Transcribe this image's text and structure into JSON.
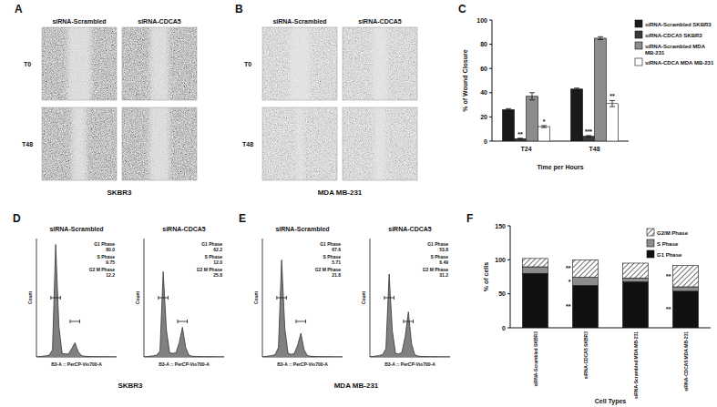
{
  "image_panels": [
    {
      "annotations": [
        "A"
      ],
      "columns": [
        "siRNA-Scrambled",
        "siRNA-CDCA5"
      ],
      "rows": [
        "T0",
        "T48"
      ],
      "caption": "SKBR3"
    },
    {
      "annotations": [
        "B"
      ],
      "columns": [
        "siRNA-Scrambled",
        "siRNA-CDCA5"
      ],
      "rows": [
        "T0",
        "T48"
      ],
      "caption": "MDA MB-231"
    }
  ],
  "chart_data": [
    {
      "type": "bar",
      "annotations": [
        "C"
      ],
      "categories": [
        "T24",
        "T48"
      ],
      "xlabel": "Time per Hours",
      "ylabel": "% of Wound Closure",
      "ylim": [
        0,
        100
      ],
      "yticks": [
        0,
        20,
        40,
        60,
        80,
        100
      ],
      "legend": "right",
      "series": [
        {
          "name": "siRNA-Scrambled SKBR3",
          "color": "#1a1a1a",
          "values": [
            26,
            43
          ],
          "errors": [
            0.8,
            0.8
          ]
        },
        {
          "name": "siRNA-CDCA5 SKBR3",
          "color": "#3a3a3a",
          "values": [
            2,
            4
          ],
          "errors": [
            0.4,
            0.6
          ],
          "significance": [
            "**",
            "***"
          ]
        },
        {
          "name": "siRNA-Scrambled MDA MB-231",
          "color": "#8c8c8c",
          "values": [
            37,
            85
          ],
          "errors": [
            3,
            1.2
          ]
        },
        {
          "name": "siRNA-CDCA MDA MB-231",
          "color": "#ffffff",
          "values": [
            12,
            31
          ],
          "errors": [
            0.8,
            2.5
          ],
          "significance": [
            "*",
            "**"
          ]
        }
      ]
    },
    {
      "type": "area",
      "annotations": [
        "D"
      ],
      "caption": "SKBR3",
      "xlabel": "B3-A :: PerCP-Vio700-A",
      "ylabel": "Count",
      "xlim": [
        0,
        250
      ],
      "ylim": [
        0,
        1000
      ],
      "tick_labels": false,
      "x": [
        0,
        10,
        20,
        30,
        40,
        50,
        60,
        70,
        80,
        90,
        100,
        110,
        120,
        130,
        140,
        150,
        160,
        170,
        180,
        190,
        200,
        210,
        220,
        230,
        240,
        250
      ],
      "series": [
        {
          "name": "siRNA-Scrambled",
          "color": "#808080",
          "values": [
            0,
            3,
            6,
            10,
            15,
            60,
            950,
            260,
            30,
            25,
            25,
            70,
            120,
            45,
            12,
            6,
            4,
            3,
            2,
            2,
            1,
            1,
            1,
            0,
            0,
            0
          ],
          "phases": [
            {
              "name": "G1 Phase",
              "value": 80,
              "label": "80.0",
              "gate": [
                45,
                75
              ]
            },
            {
              "name": "S Phase",
              "value": 9.75
            },
            {
              "name": "G2 M Phase",
              "value": 12.2,
              "gate": [
                105,
                135
              ]
            }
          ]
        },
        {
          "name": "siRNA-CDCA5",
          "color": "#808080",
          "values": [
            0,
            3,
            6,
            10,
            15,
            50,
            720,
            230,
            35,
            30,
            35,
            120,
            250,
            80,
            15,
            6,
            4,
            3,
            2,
            2,
            1,
            1,
            1,
            0,
            0,
            0
          ],
          "phases": [
            {
              "name": "G1 Phase",
              "value": 62.2,
              "gate": [
                45,
                75
              ]
            },
            {
              "name": "S Phase",
              "value": 12,
              "label": "12.0"
            },
            {
              "name": "G2 M Phase",
              "value": 25.8,
              "gate": [
                105,
                135
              ]
            }
          ]
        }
      ]
    },
    {
      "type": "area",
      "annotations": [
        "E"
      ],
      "caption": "MDA MB-231",
      "xlabel": "B3-A :: PerCP-Vio700-A",
      "ylabel": "Count",
      "xlim": [
        0,
        250
      ],
      "ylim": [
        0,
        1000
      ],
      "tick_labels": false,
      "x": [
        0,
        10,
        20,
        30,
        40,
        50,
        60,
        70,
        80,
        90,
        100,
        110,
        120,
        130,
        140,
        150,
        160,
        170,
        180,
        190,
        200,
        210,
        220,
        230,
        240,
        250
      ],
      "series": [
        {
          "name": "siRNA-Scrambled",
          "color": "#808080",
          "values": [
            0,
            4,
            8,
            12,
            20,
            80,
            820,
            240,
            30,
            22,
            30,
            100,
            200,
            60,
            12,
            6,
            4,
            3,
            2,
            2,
            1,
            1,
            0,
            0,
            0,
            0
          ],
          "phases": [
            {
              "name": "G1 Phase",
              "value": 67.6,
              "gate": [
                45,
                75
              ]
            },
            {
              "name": "S Phase",
              "value": 5.71
            },
            {
              "name": "G2 M Phase",
              "value": 21.8,
              "gate": [
                105,
                135
              ]
            }
          ]
        },
        {
          "name": "siRNA-CDCA5",
          "color": "#808080",
          "values": [
            0,
            4,
            8,
            12,
            20,
            70,
            700,
            220,
            30,
            25,
            40,
            170,
            380,
            110,
            18,
            7,
            4,
            3,
            2,
            2,
            1,
            1,
            0,
            0,
            0,
            0
          ],
          "phases": [
            {
              "name": "G1 Phase",
              "value": 53.8,
              "gate": [
                45,
                75
              ]
            },
            {
              "name": "S Phase",
              "value": 6.49
            },
            {
              "name": "G2 M Phase",
              "value": 31.2,
              "gate": [
                105,
                135
              ]
            }
          ]
        }
      ]
    },
    {
      "type": "bar",
      "stacked": true,
      "annotations": [
        "F"
      ],
      "categories": [
        "siRNA-Scrambled SKBR3",
        "siRNA-CDCA5 SKBR3",
        "siRNA-Scrambled MDA MB-231",
        "siRNA-CDCA5 MDA MB-231"
      ],
      "xlabel": "Cell Types",
      "ylabel": "% of cells",
      "ylim": [
        0,
        150
      ],
      "yticks": [
        0,
        50,
        100,
        150
      ],
      "legend": "upper right",
      "series": [
        {
          "name": "G1 Phase",
          "color": "#111111",
          "values": [
            80,
            62.2,
            67.6,
            53.8
          ],
          "significance": [
            null,
            "**",
            null,
            "**"
          ]
        },
        {
          "name": "S Phase",
          "color": "#8c8c8c",
          "values": [
            9.75,
            12,
            5.71,
            6.49
          ],
          "significance": [
            null,
            "*",
            null,
            null
          ]
        },
        {
          "name": "G2/M Phase",
          "color": "#ffffff",
          "values": [
            12.2,
            25.8,
            21.8,
            31.2
          ],
          "significance": [
            null,
            "**",
            null,
            "**"
          ]
        }
      ]
    }
  ]
}
